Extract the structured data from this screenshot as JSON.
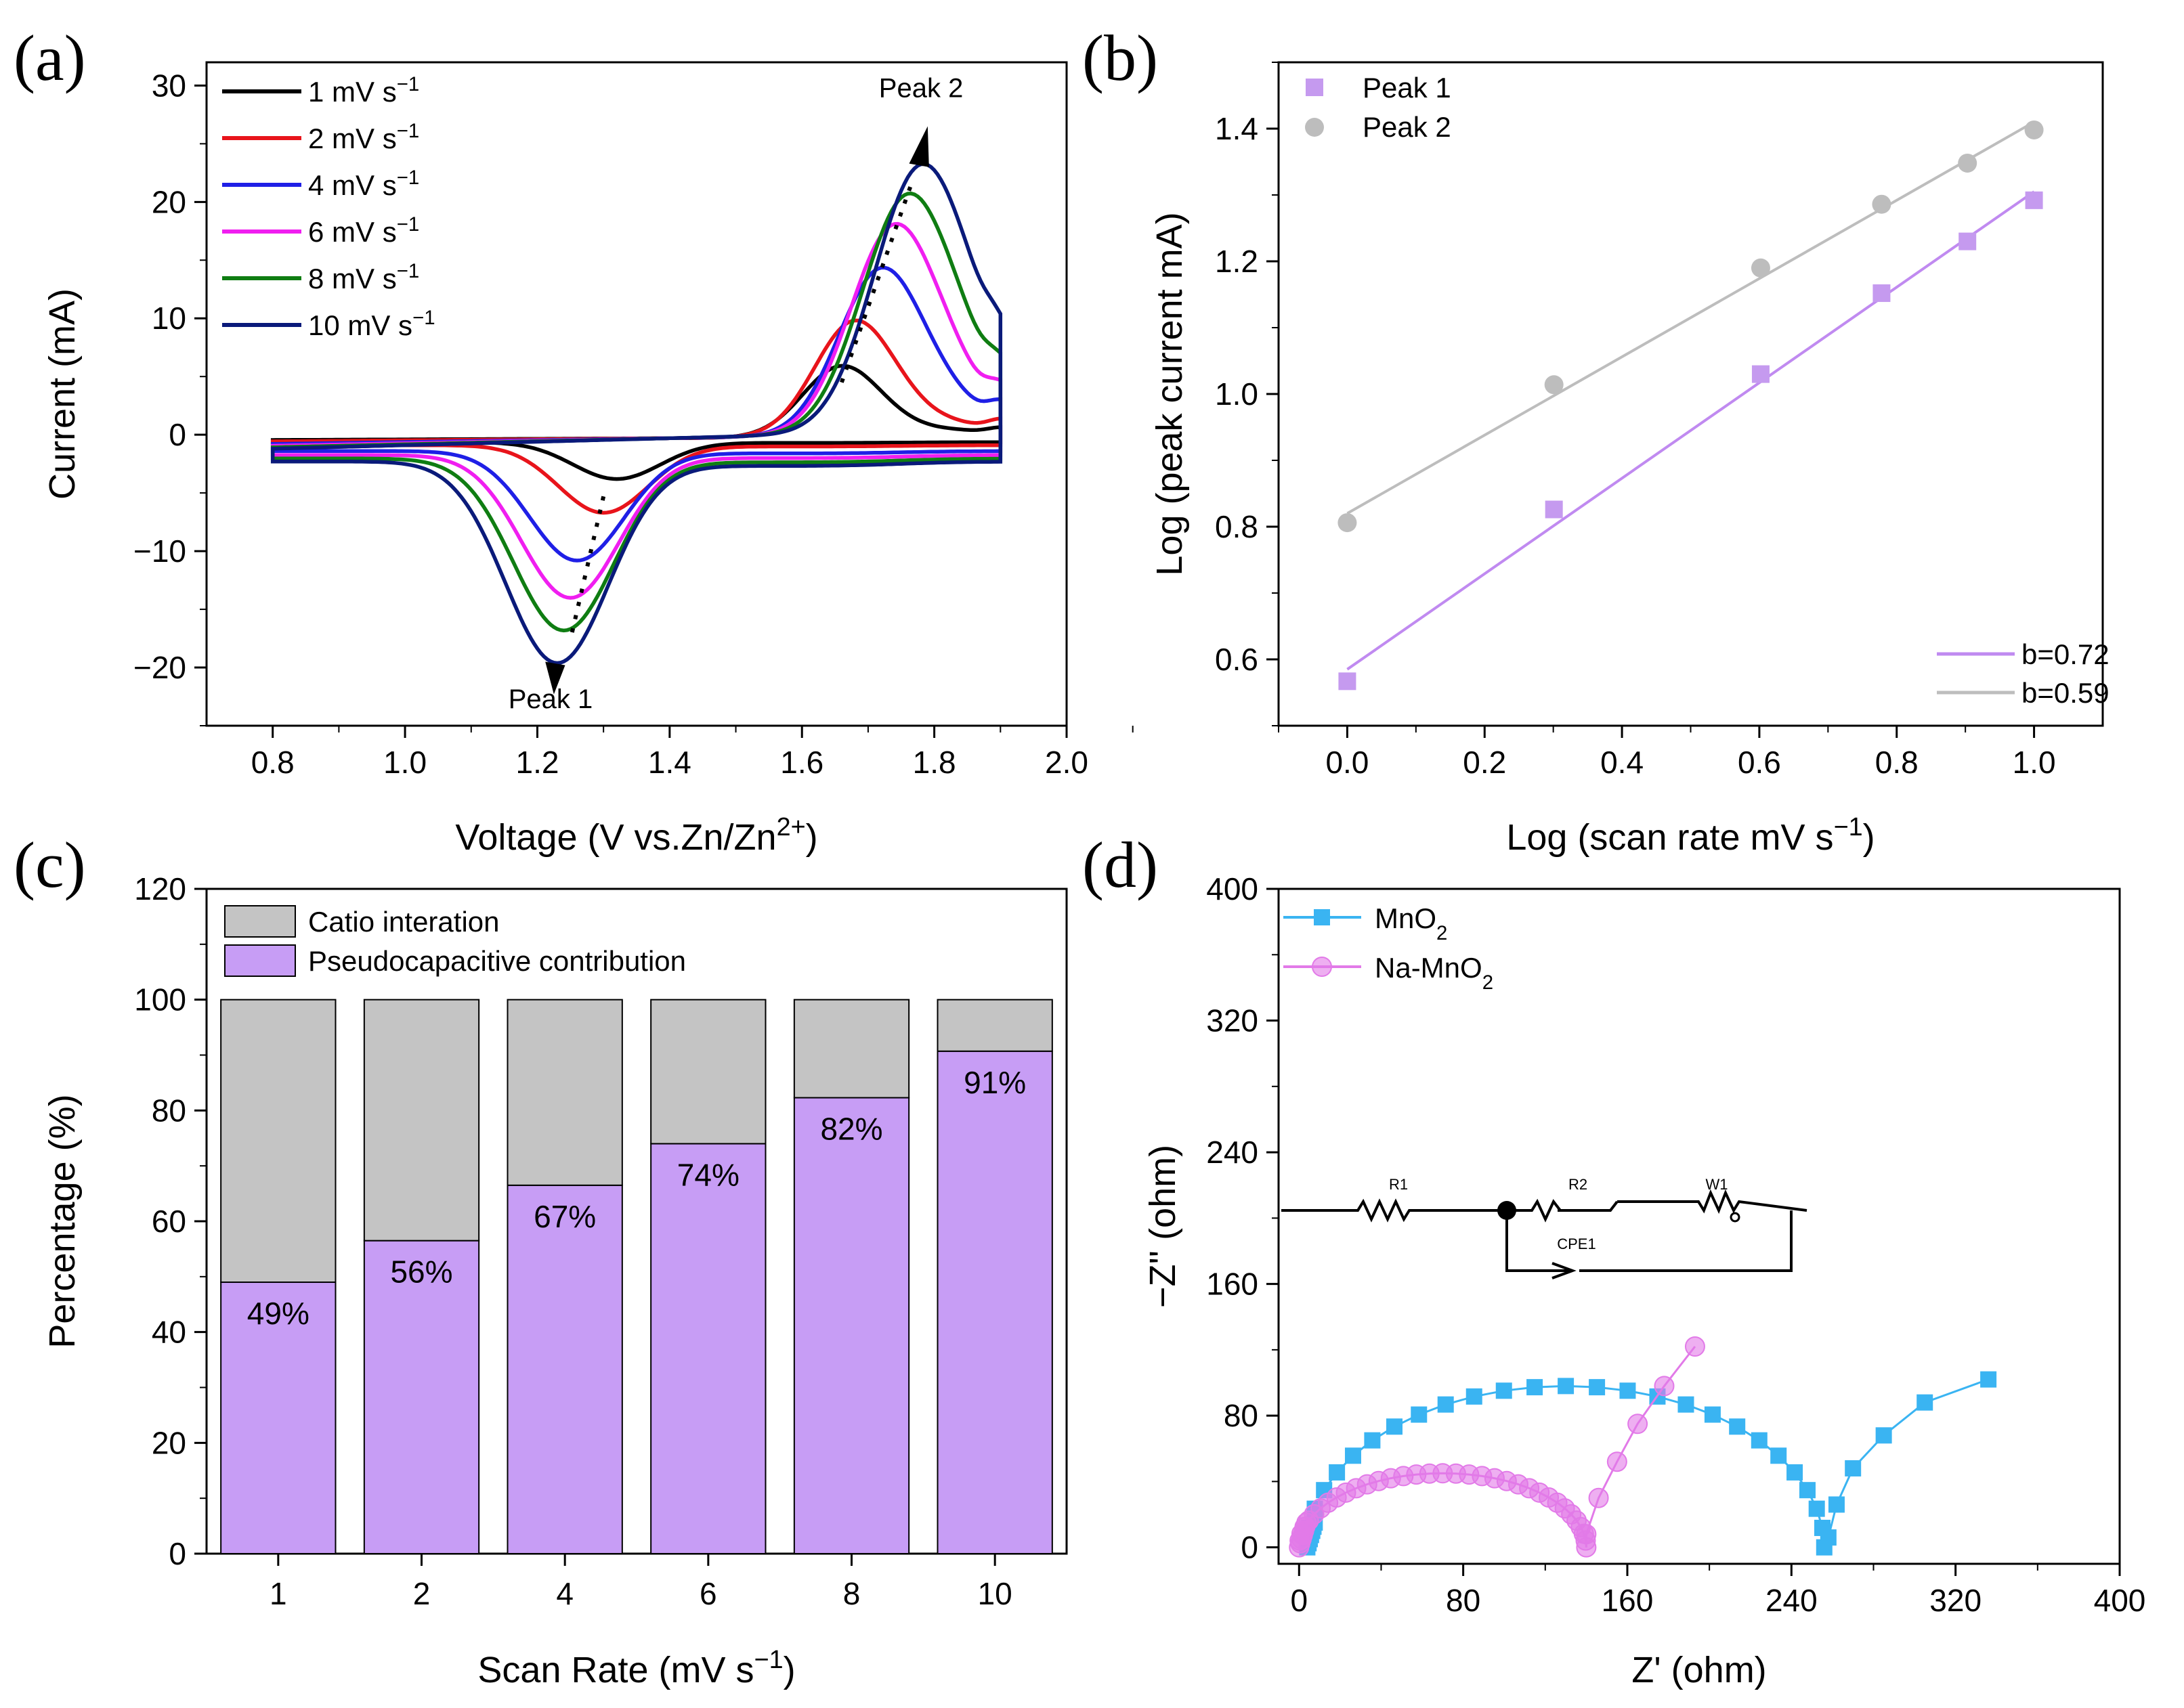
{
  "chart_data": [
    {
      "panel": "(a)",
      "type": "line",
      "xlabel": "Voltage (V vs.Zn/Zn",
      "xlabel_sup": "2+",
      "xlabel_end": ")",
      "ylabel": "Current (mA)",
      "xlim": [
        0.7,
        2.0
      ],
      "ylim": [
        -25,
        32
      ],
      "xticks": [
        "0.8",
        "1.0",
        "1.2",
        "1.4",
        "1.6",
        "1.8",
        "2.0"
      ],
      "yticks": [
        "30",
        "20",
        "10",
        "0",
        "−10",
        "−20"
      ],
      "unit_text": "mV s",
      "unit_sup": "−1",
      "series": [
        {
          "name": "1",
          "color": "#000000",
          "scale": 0.17,
          "ox_peak": [
            1.66,
            6.5
          ],
          "red_peak": [
            1.32,
            -3.8
          ]
        },
        {
          "name": "2",
          "color": "#e8141b",
          "scale": 0.3,
          "ox_peak": [
            1.68,
            10.6
          ],
          "red_peak": [
            1.3,
            -6.7
          ]
        },
        {
          "name": "4",
          "color": "#1f1fe6",
          "scale": 0.55,
          "ox_peak": [
            1.72,
            15.5
          ],
          "red_peak": [
            1.26,
            -10.8
          ]
        },
        {
          "name": "6",
          "color": "#f01ef0",
          "scale": 0.72,
          "ox_peak": [
            1.74,
            19.5
          ],
          "red_peak": [
            1.25,
            -14.0
          ]
        },
        {
          "name": "8",
          "color": "#0f7d12",
          "scale": 0.87,
          "ox_peak": [
            1.76,
            22.3
          ],
          "red_peak": [
            1.24,
            -16.8
          ]
        },
        {
          "name": "10",
          "color": "#0a1a7a",
          "scale": 1.0,
          "ox_peak": [
            1.78,
            25.0
          ],
          "red_peak": [
            1.23,
            -19.6
          ]
        }
      ],
      "annotations": [
        "Peak 1",
        "Peak 2"
      ]
    },
    {
      "panel": "(b)",
      "type": "scatter",
      "xlabel": "Log (scan rate mV s",
      "xlabel_sup": "−1",
      "xlabel_end": ")",
      "ylabel": "Log (peak current mA)",
      "xlim": [
        -0.1,
        1.1
      ],
      "ylim": [
        0.5,
        1.5
      ],
      "xticks": [
        "0.0",
        "0.2",
        "0.4",
        "0.6",
        "0.8",
        "1.0"
      ],
      "yticks": [
        "0.6",
        "0.8",
        "1.0",
        "1.2",
        "1.4"
      ],
      "series": [
        {
          "name": "Peak 1",
          "marker": "square",
          "color": "#c59aef",
          "line_color": "#c08af0",
          "x": [
            0.0,
            0.301,
            0.602,
            0.778,
            0.903,
            1.0
          ],
          "y": [
            0.567,
            0.826,
            1.03,
            1.152,
            1.23,
            1.292
          ],
          "fit": [
            0.585,
            1.305
          ],
          "fit_label": "b=0.72"
        },
        {
          "name": "Peak 2",
          "marker": "circle",
          "color": "#bdbdbd",
          "line_color": "#bdbdbd",
          "x": [
            0.0,
            0.301,
            0.602,
            0.778,
            0.903,
            1.0
          ],
          "y": [
            0.806,
            1.014,
            1.19,
            1.286,
            1.348,
            1.398
          ],
          "fit": [
            0.82,
            1.41
          ],
          "fit_label": "b=0.59"
        }
      ]
    },
    {
      "panel": "(c)",
      "type": "bar",
      "xlabel": "Scan Rate (mV s",
      "xlabel_sup": "−1",
      "xlabel_end": ")",
      "ylabel": "Percentage (%)",
      "ylim": [
        0,
        120
      ],
      "yticks": [
        "0",
        "20",
        "40",
        "60",
        "80",
        "100",
        "120"
      ],
      "categories": [
        "1",
        "2",
        "4",
        "6",
        "8",
        "10"
      ],
      "series": [
        {
          "name": "Pseudocapacitive contribution",
          "color": "#c79df5",
          "values": [
            49,
            56.5,
            66.5,
            74,
            82.3,
            90.7
          ]
        },
        {
          "name": "Catio interation",
          "color": "#c4c4c4",
          "values": [
            51,
            43.5,
            33.5,
            26,
            17.7,
            9.3
          ]
        }
      ],
      "labels": [
        "49%",
        "56%",
        "67%",
        "74%",
        "82%",
        "91%"
      ]
    },
    {
      "panel": "(d)",
      "type": "scatter",
      "xlabel": "Z' (ohm)",
      "ylabel": "−Z'' (ohm)",
      "xlim": [
        -10,
        400
      ],
      "ylim": [
        -10,
        400
      ],
      "xticks": [
        "0",
        "80",
        "160",
        "240",
        "320",
        "400"
      ],
      "yticks": [
        "0",
        "80",
        "160",
        "240",
        "320",
        "400"
      ],
      "series": [
        {
          "name": "MnO",
          "sub": "2",
          "color": "#3ab4f2",
          "marker": "square",
          "arc": {
            "x0": 4,
            "x1": 256,
            "height": 98
          },
          "tail": [
            [
              258,
              6
            ],
            [
              262,
              26
            ],
            [
              270,
              48
            ],
            [
              285,
              68
            ],
            [
              305,
              88
            ],
            [
              336,
              102
            ]
          ]
        },
        {
          "name": "Na-MnO",
          "sub": "2",
          "color": "#e27ae8",
          "marker": "circle",
          "arc": {
            "x0": 0,
            "x1": 140,
            "height": 45
          },
          "tail": [
            [
              140,
              8
            ],
            [
              146,
              30
            ],
            [
              155,
              52
            ],
            [
              165,
              75
            ],
            [
              178,
              98
            ],
            [
              193,
              122
            ]
          ]
        }
      ],
      "circuit": {
        "labels": [
          "R1",
          "R2",
          "W1",
          "CPE1"
        ]
      }
    }
  ],
  "panel_labels": [
    "(a)",
    "(b)",
    "(c)",
    "(d)"
  ],
  "legend_c": [
    "Catio interation",
    "Pseudocapacitive contribution"
  ]
}
